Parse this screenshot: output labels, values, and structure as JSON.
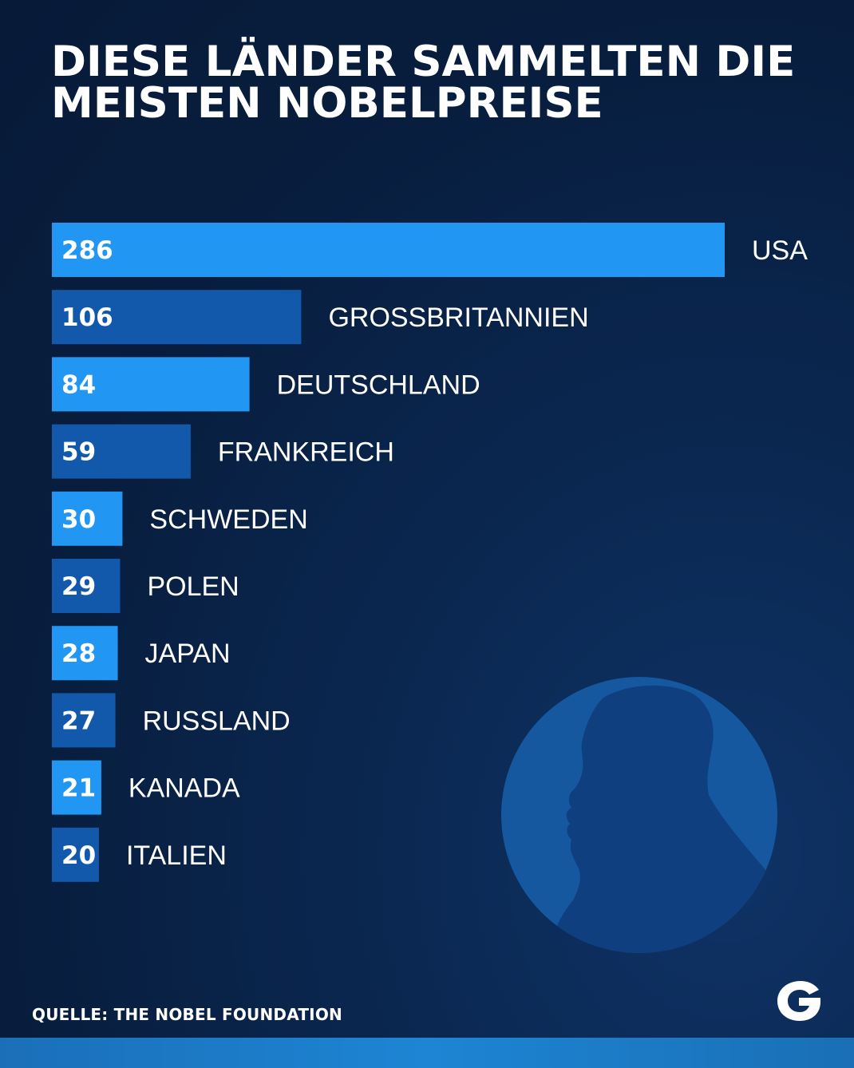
{
  "title_lines": [
    "DIESE LÄNDER SAMMELTEN DIE",
    "MEISTEN NOBELPREISE"
  ],
  "source": "QUELLE: THE NOBEL FOUNDATION",
  "logo_letter": "G",
  "icons": [
    "nobel-medal-silhouette-icon",
    "g-logo-icon"
  ],
  "colors": {
    "background": "#081d3d",
    "bar_light": "#2196f3",
    "bar_dark": "#1259ab",
    "medal": "#15589f",
    "medal_silhouette": "#0f3f7f",
    "strip": "#1d85d4"
  },
  "chart_data": {
    "type": "bar",
    "orientation": "horizontal",
    "title": "DIESE LÄNDER SAMMELTEN DIE MEISTEN NOBELPREISE",
    "categories": [
      "USA",
      "GROSSBRITANNIEN",
      "DEUTSCHLAND",
      "FRANKREICH",
      "SCHWEDEN",
      "POLEN",
      "JAPAN",
      "RUSSLAND",
      "KANADA",
      "ITALIEN"
    ],
    "values": [
      286,
      106,
      84,
      59,
      30,
      29,
      28,
      27,
      21,
      20
    ],
    "bar_colors": [
      "#2196f3",
      "#1259ab",
      "#2196f3",
      "#1259ab",
      "#2196f3",
      "#1259ab",
      "#2196f3",
      "#1259ab",
      "#2196f3",
      "#1259ab"
    ],
    "data_labels": "inside-left",
    "category_labels": "right-of-bar",
    "grid": false,
    "legend": "none",
    "xlim": [
      0,
      286
    ]
  }
}
